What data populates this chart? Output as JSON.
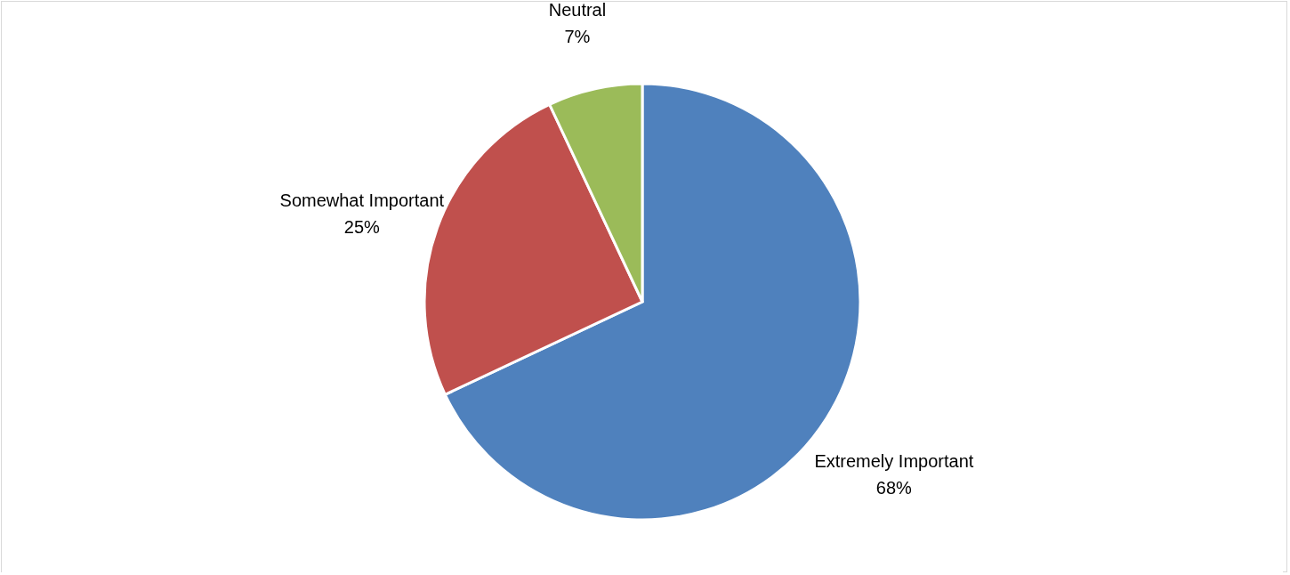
{
  "chart_data": {
    "type": "pie",
    "categories": [
      "Extremely Important",
      "Somewhat Important",
      "Neutral"
    ],
    "values": [
      68,
      25,
      7
    ],
    "value_labels": [
      "68%",
      "25%",
      "7%"
    ],
    "colors": [
      "#4f81bd",
      "#c0504d",
      "#9bbb59"
    ]
  }
}
